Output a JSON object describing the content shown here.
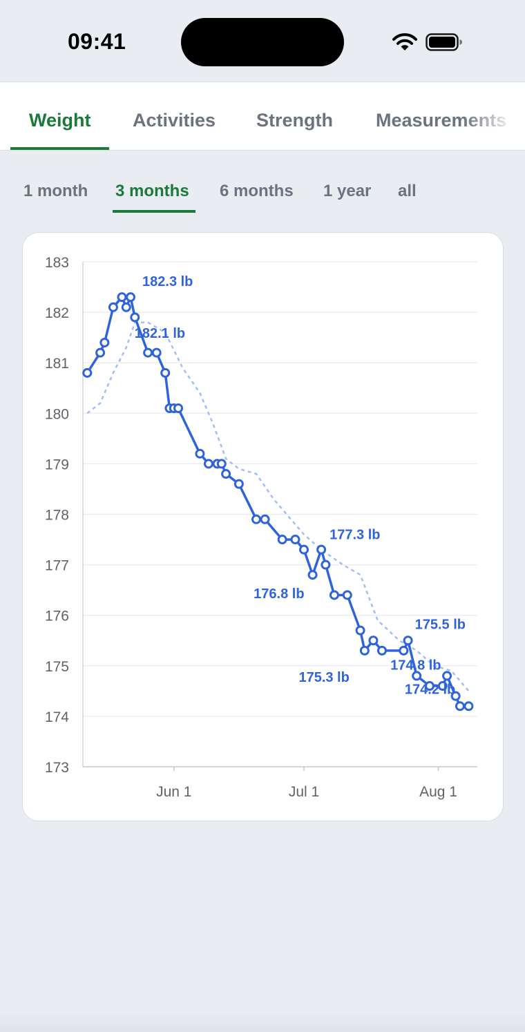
{
  "status": {
    "time": "09:41"
  },
  "tabs": [
    {
      "label": "Weight",
      "active": true
    },
    {
      "label": "Activities",
      "active": false
    },
    {
      "label": "Strength",
      "active": false
    },
    {
      "label": "Measurements",
      "active": false
    }
  ],
  "ranges": [
    {
      "label": "1 month",
      "active": false
    },
    {
      "label": "3 months",
      "active": true
    },
    {
      "label": "6 months",
      "active": false
    },
    {
      "label": "1 year",
      "active": false
    },
    {
      "label": "all",
      "active": false
    }
  ],
  "colors": {
    "accent": "#1a7a3a",
    "series": "#2f63db",
    "trend": "#9fc0f5",
    "muted": "#6b7280"
  },
  "icons": [
    "wifi-icon",
    "battery-icon"
  ],
  "chart_data": {
    "type": "line",
    "ylim": [
      173,
      183
    ],
    "yticks": [
      173,
      174,
      175,
      176,
      177,
      178,
      179,
      180,
      181,
      182,
      183
    ],
    "xlim": [
      "2024-05-11",
      "2024-08-10"
    ],
    "xticks": [
      {
        "date": "2024-06-01",
        "label": "Jun 1"
      },
      {
        "date": "2024-07-01",
        "label": "Jul 1"
      },
      {
        "date": "2024-08-01",
        "label": "Aug 1"
      }
    ],
    "grid": true,
    "series": [
      {
        "points": [
          [
            "2024-05-12",
            180.8
          ],
          [
            "2024-05-15",
            181.2
          ],
          [
            "2024-05-16",
            181.4
          ],
          [
            "2024-05-18",
            182.1
          ],
          [
            "2024-05-20",
            182.3
          ],
          [
            "2024-05-21",
            182.1
          ],
          [
            "2024-05-22",
            182.3
          ],
          [
            "2024-05-23",
            181.9
          ],
          [
            "2024-05-26",
            181.2
          ],
          [
            "2024-05-28",
            181.2
          ],
          [
            "2024-05-30",
            180.8
          ],
          [
            "2024-05-31",
            180.1
          ],
          [
            "2024-06-01",
            180.1
          ],
          [
            "2024-06-02",
            180.1
          ],
          [
            "2024-06-07",
            179.2
          ],
          [
            "2024-06-09",
            179.0
          ],
          [
            "2024-06-11",
            179.0
          ],
          [
            "2024-06-12",
            179.0
          ],
          [
            "2024-06-13",
            178.8
          ],
          [
            "2024-06-16",
            178.6
          ],
          [
            "2024-06-20",
            177.9
          ],
          [
            "2024-06-22",
            177.9
          ],
          [
            "2024-06-26",
            177.5
          ],
          [
            "2024-06-29",
            177.5
          ],
          [
            "2024-07-01",
            177.3
          ],
          [
            "2024-07-03",
            176.8
          ],
          [
            "2024-07-05",
            177.3
          ],
          [
            "2024-07-06",
            177.0
          ],
          [
            "2024-07-08",
            176.4
          ],
          [
            "2024-07-11",
            176.4
          ],
          [
            "2024-07-14",
            175.7
          ],
          [
            "2024-07-15",
            175.3
          ],
          [
            "2024-07-17",
            175.5
          ],
          [
            "2024-07-19",
            175.3
          ],
          [
            "2024-07-24",
            175.3
          ],
          [
            "2024-07-25",
            175.5
          ],
          [
            "2024-07-27",
            174.8
          ],
          [
            "2024-07-30",
            174.6
          ],
          [
            "2024-08-02",
            174.6
          ],
          [
            "2024-08-03",
            174.8
          ],
          [
            "2024-08-05",
            174.4
          ],
          [
            "2024-08-06",
            174.2
          ],
          [
            "2024-08-08",
            174.2
          ]
        ]
      },
      {
        "style": "dashed",
        "points": [
          [
            "2024-05-12",
            180.0
          ],
          [
            "2024-05-15",
            180.2
          ],
          [
            "2024-05-18",
            180.8
          ],
          [
            "2024-05-21",
            181.3
          ],
          [
            "2024-05-23",
            181.8
          ],
          [
            "2024-05-26",
            181.8
          ],
          [
            "2024-05-30",
            181.6
          ],
          [
            "2024-06-03",
            180.9
          ],
          [
            "2024-06-07",
            180.4
          ],
          [
            "2024-06-10",
            179.8
          ],
          [
            "2024-06-13",
            179.1
          ],
          [
            "2024-06-16",
            178.9
          ],
          [
            "2024-06-20",
            178.8
          ],
          [
            "2024-06-24",
            178.3
          ],
          [
            "2024-06-28",
            177.9
          ],
          [
            "2024-07-01",
            177.6
          ],
          [
            "2024-07-05",
            177.3
          ],
          [
            "2024-07-10",
            177.0
          ],
          [
            "2024-07-14",
            176.8
          ],
          [
            "2024-07-18",
            175.9
          ],
          [
            "2024-07-23",
            175.5
          ],
          [
            "2024-07-27",
            175.3
          ],
          [
            "2024-07-31",
            175.0
          ],
          [
            "2024-08-04",
            174.9
          ],
          [
            "2024-08-08",
            174.5
          ]
        ]
      }
    ],
    "annotations": [
      {
        "text": "182.3 lb",
        "date": "2024-05-22",
        "value": 182.3
      },
      {
        "text": "182.1 lb",
        "date": "2024-05-21",
        "value": 182.1
      },
      {
        "text": "177.3 lb",
        "date": "2024-07-05",
        "value": 177.3
      },
      {
        "text": "176.8 lb",
        "date": "2024-07-03",
        "value": 176.8
      },
      {
        "text": "175.5 lb",
        "date": "2024-07-25",
        "value": 175.5
      },
      {
        "text": "175.3 lb",
        "date": "2024-07-15",
        "value": 175.3
      },
      {
        "text": "174.8 lb",
        "date": "2024-07-27",
        "value": 174.8
      },
      {
        "text": "174.2 lb",
        "date": "2024-08-06",
        "value": 174.2
      }
    ]
  }
}
